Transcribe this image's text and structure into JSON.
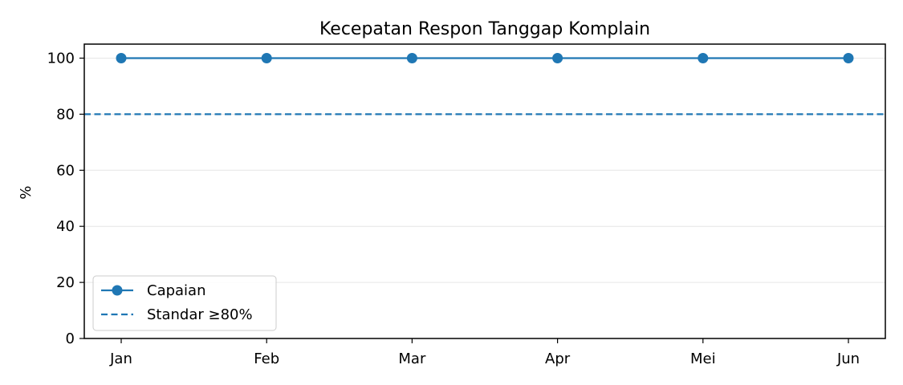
{
  "chart_data": {
    "type": "line",
    "title": "Kecepatan Respon Tanggap Komplain",
    "xlabel": "",
    "ylabel": "%",
    "categories": [
      "Jan",
      "Feb",
      "Mar",
      "Apr",
      "Mei",
      "Jun"
    ],
    "series": [
      {
        "name": "Capaian",
        "values": [
          100,
          100,
          100,
          100,
          100,
          100
        ],
        "color": "#1f77b4",
        "style": "solid",
        "marker": "circle"
      }
    ],
    "reference_lines": [
      {
        "name": "Standar ≥80%",
        "value": 80,
        "color": "#1f77b4",
        "style": "dashed"
      }
    ],
    "ylim": [
      0,
      105
    ],
    "yticks": [
      0,
      20,
      40,
      60,
      80,
      100
    ],
    "grid": "y",
    "legend": "lower-left"
  }
}
